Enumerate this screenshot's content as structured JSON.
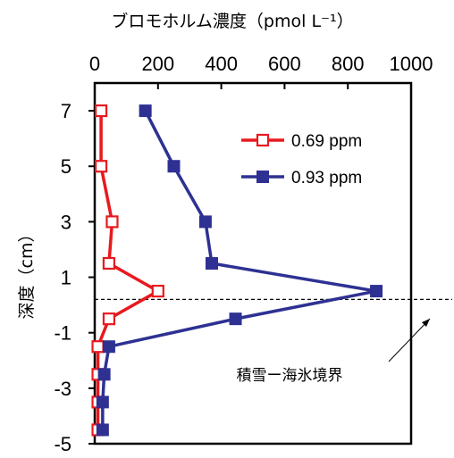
{
  "chart_data": {
    "type": "line",
    "title": "ブロモホルム濃度（pmol L⁻¹）",
    "ylabel": "深度（cm）",
    "xlim": [
      0,
      1000
    ],
    "ylim": [
      -5,
      8
    ],
    "x_ticks": [
      "0",
      "200",
      "400",
      "600",
      "800",
      "1000"
    ],
    "y_ticks": [
      "7",
      "5",
      "3",
      "1",
      "-1",
      "-3",
      "-5"
    ],
    "series": [
      {
        "name": "0.69 ppm",
        "color": "#e8191f",
        "marker": "open-square",
        "points": [
          [
            20,
            7
          ],
          [
            20,
            5
          ],
          [
            55,
            3
          ],
          [
            45,
            1.5
          ],
          [
            200,
            0.5
          ],
          [
            45,
            -0.5
          ],
          [
            10,
            -1.5
          ],
          [
            10,
            -2.5
          ],
          [
            10,
            -3.5
          ],
          [
            10,
            -4.5
          ]
        ]
      },
      {
        "name": "0.93 ppm",
        "color": "#2e3192",
        "marker": "filled-square",
        "points": [
          [
            160,
            7
          ],
          [
            250,
            5
          ],
          [
            350,
            3
          ],
          [
            370,
            1.5
          ],
          [
            890,
            0.5
          ],
          [
            445,
            -0.5
          ],
          [
            45,
            -1.5
          ],
          [
            30,
            -2.5
          ],
          [
            25,
            -3.5
          ],
          [
            25,
            -4.5
          ]
        ]
      }
    ],
    "boundary": {
      "y": 0.2,
      "label": "積雪ー海氷境界"
    },
    "legend_position": "top-right",
    "grid": false
  }
}
